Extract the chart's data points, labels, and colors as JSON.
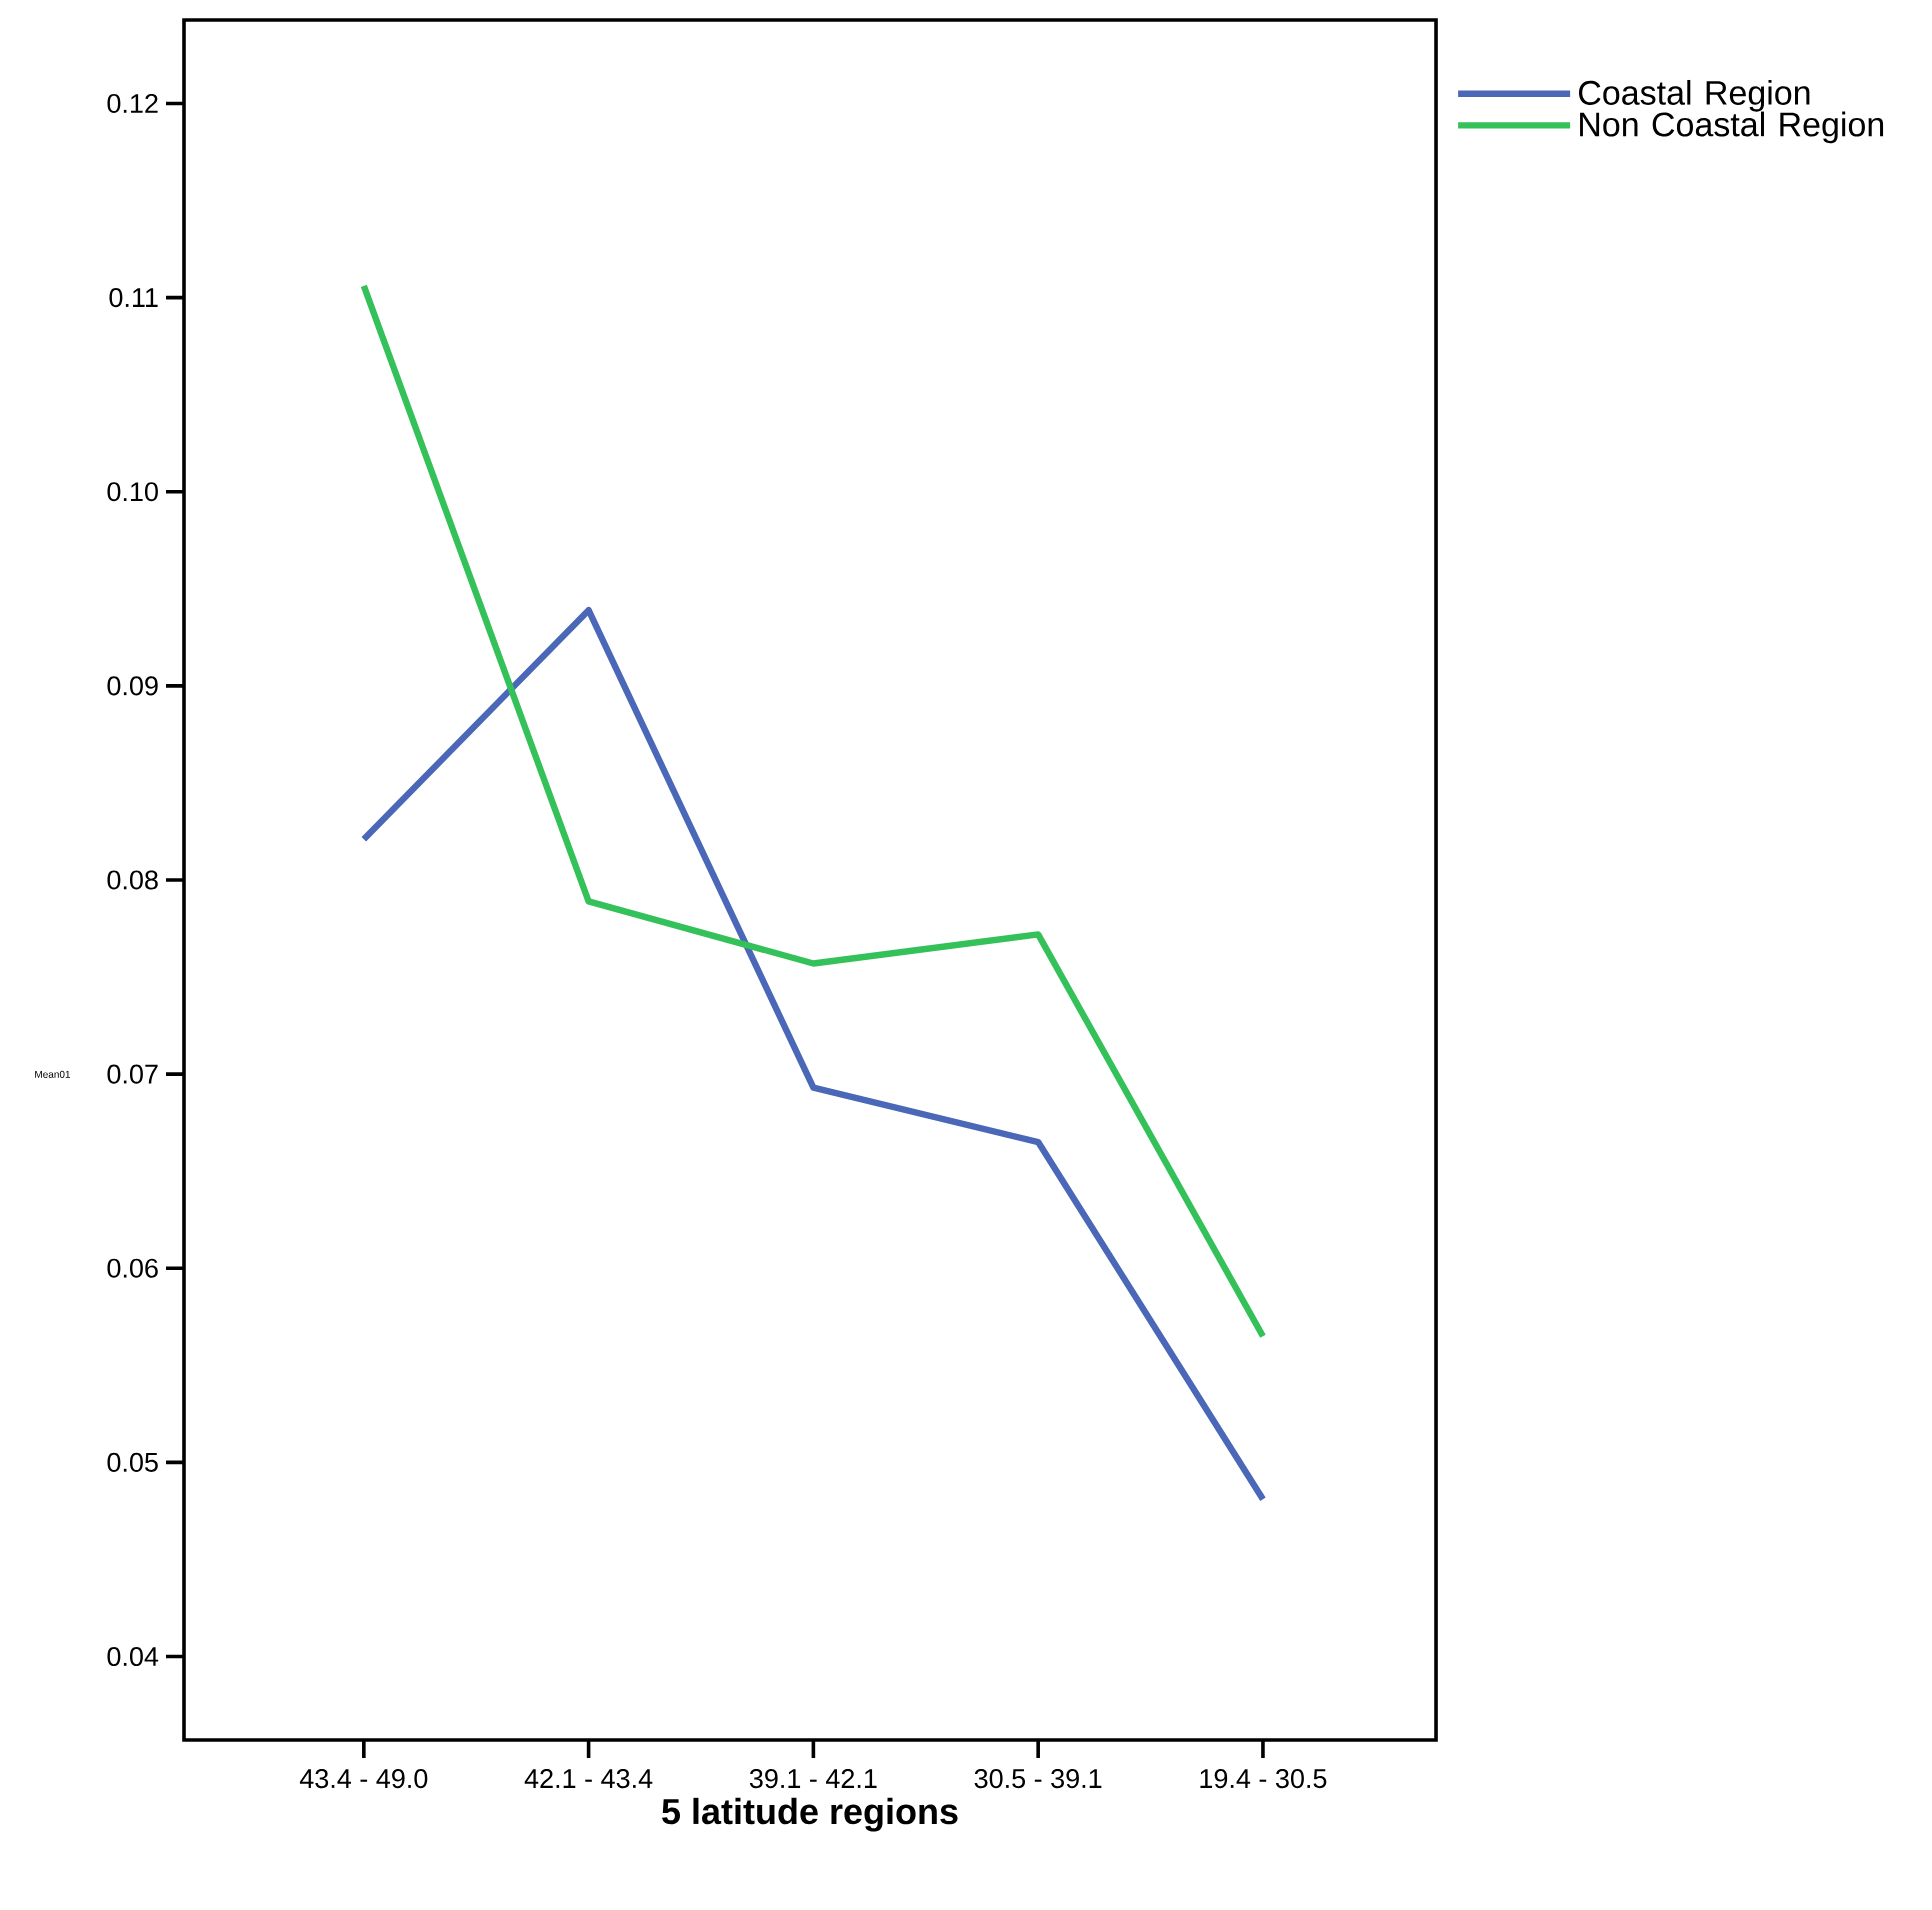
{
  "chart_data": {
    "type": "line",
    "xlabel": "5 latitude regions",
    "ylabel": "Mean01",
    "categories": [
      "43.4 - 49.0",
      "42.1 - 43.4",
      "39.1 - 42.1",
      "30.5 - 39.1",
      "19.4 - 30.5"
    ],
    "series": [
      {
        "name": "Coastal Region",
        "color": "#4a67b8",
        "values": [
          0.0821,
          0.0939,
          0.0693,
          0.0665,
          0.0481
        ]
      },
      {
        "name": "Non Coastal Region",
        "color": "#35c15a",
        "values": [
          0.1106,
          0.0789,
          0.0757,
          0.0772,
          0.0565
        ]
      }
    ],
    "ylim": [
      0.0357,
      0.1243
    ],
    "yticks": [
      0.04,
      0.05,
      0.06,
      0.07,
      0.08,
      0.09,
      {
        "value": 0.1,
        "label": "0.10"
      },
      0.11,
      0.12
    ],
    "grid": false,
    "legend": "top right",
    "marker": "none",
    "line_style": "solid"
  }
}
